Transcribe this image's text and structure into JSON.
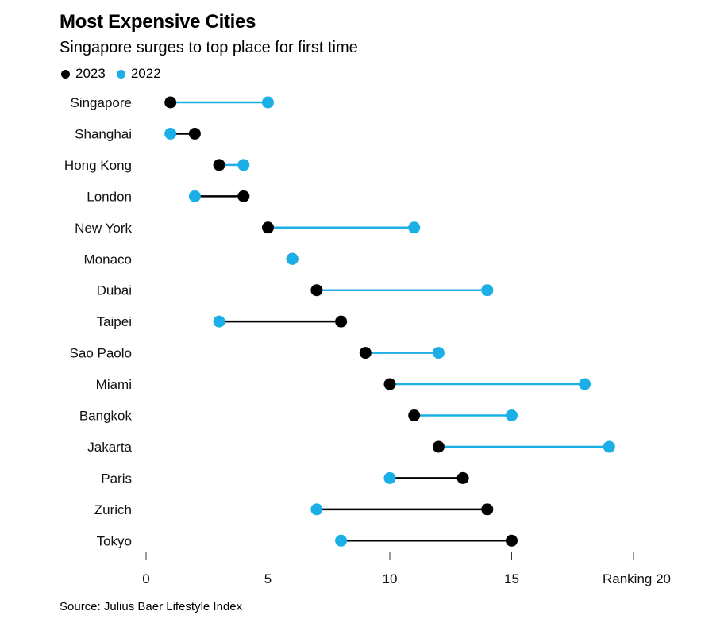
{
  "chart_data": {
    "type": "dumbbell",
    "title": "Most Expensive Cities",
    "subtitle": "Singapore surges to top place for first time",
    "xlabel": "Ranking",
    "xlim": [
      0,
      20
    ],
    "xticks": [
      0,
      5,
      10,
      15,
      20
    ],
    "grid": false,
    "legend_position": "top-left",
    "series": [
      {
        "name": "2023",
        "color": "#000000"
      },
      {
        "name": "2022",
        "color": "#1aafe6"
      }
    ],
    "categories": [
      "Singapore",
      "Shanghai",
      "Hong Kong",
      "London",
      "New York",
      "Monaco",
      "Dubai",
      "Taipei",
      "Sao Paolo",
      "Miami",
      "Bangkok",
      "Jakarta",
      "Paris",
      "Zurich",
      "Tokyo"
    ],
    "values_2023": [
      1,
      2,
      3,
      4,
      5,
      6,
      7,
      8,
      9,
      10,
      11,
      12,
      13,
      14,
      15
    ],
    "values_2022": [
      5,
      1,
      4,
      2,
      11,
      6,
      14,
      3,
      12,
      18,
      15,
      19,
      10,
      7,
      8
    ],
    "source": "Source: Julius Baer Lifestyle Index"
  }
}
